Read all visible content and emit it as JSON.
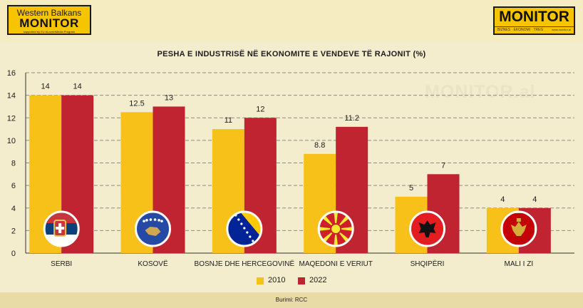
{
  "header": {
    "left_logo": {
      "line1": "Western Balkans",
      "line2": "MONITOR",
      "line3": "supported by EU #LoveinMedia Program"
    },
    "right_logo": {
      "name": "MONITOR",
      "tagline": "BIZNES · EKONOMI · TREG",
      "url": "www.monitor.al"
    }
  },
  "watermark": "MONITOR.al",
  "source": "Burimi: RCC",
  "colors": {
    "series_2010": "#f7c11a",
    "series_2022": "#bf2430",
    "grid": "#8c8c8c",
    "background": "#f3eccd"
  },
  "chart_data": {
    "type": "bar",
    "title": "PESHA E INDUSTRISË NË EKONOMITE E VENDEVE TË RAJONIT (%)",
    "xlabel": "",
    "ylabel": "",
    "categories": [
      "SERBI",
      "KOSOVË",
      "BOSNJE DHE HERCEGOVINË",
      "MAQEDONI E VERIUT",
      "SHQIPËRI",
      "MALI I ZI"
    ],
    "series": [
      {
        "name": "2010",
        "values": [
          14,
          12.5,
          11,
          8.8,
          5,
          4
        ]
      },
      {
        "name": "2022",
        "values": [
          14,
          13,
          12,
          11.2,
          7,
          4
        ]
      }
    ],
    "data_labels": [
      [
        "14",
        "12.5",
        "11",
        "8.8",
        "5",
        "4"
      ],
      [
        "14",
        "13",
        "12",
        "11.2",
        "7",
        "4"
      ]
    ],
    "ylim": [
      0,
      16
    ],
    "yticks": [
      0,
      2,
      4,
      6,
      8,
      10,
      12,
      14,
      16
    ],
    "grid": "horizontal dashed",
    "legend_position": "bottom-center",
    "flags": [
      "serbia-flag-icon",
      "kosovo-flag-icon",
      "bosnia-flag-icon",
      "north-macedonia-flag-icon",
      "albania-flag-icon",
      "montenegro-flag-icon"
    ]
  }
}
